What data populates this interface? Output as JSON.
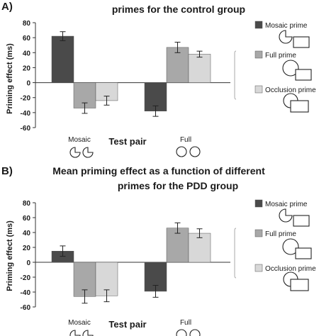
{
  "legend": [
    {
      "label": "Mosaic prime",
      "color": "#4a4a4a"
    },
    {
      "label": "Full prime",
      "color": "#a8a8a8"
    },
    {
      "label": "Occlusion prime",
      "color": "#d8d8d8"
    }
  ],
  "chart_data": [
    {
      "type": "bar",
      "panel_label": "A)",
      "title": "primes for the control group",
      "ylabel": "Priming effect (ms)",
      "xlabel": "Test pair",
      "ylim": [
        -60,
        80
      ],
      "yticks": [
        -60,
        -40,
        -20,
        0,
        20,
        40,
        60,
        80
      ],
      "categories": [
        "Mosaic",
        "Full"
      ],
      "series": [
        {
          "name": "Mosaic prime",
          "values": [
            62,
            -38
          ],
          "errors": [
            6,
            7
          ]
        },
        {
          "name": "Full prime",
          "values": [
            -34,
            47
          ],
          "errors": [
            7,
            7
          ]
        },
        {
          "name": "Occlusion prime",
          "values": [
            -24,
            38
          ],
          "errors": [
            6,
            4
          ]
        }
      ]
    },
    {
      "type": "bar",
      "panel_label": "B)",
      "title": "Mean priming effect as a function of different primes for the PDD group",
      "ylabel": "Priming effect (ms)",
      "xlabel": "Test pair",
      "ylim": [
        -60,
        80
      ],
      "yticks": [
        -60,
        -40,
        -20,
        0,
        20,
        40,
        60,
        80
      ],
      "categories": [
        "Mosaic",
        "Full"
      ],
      "series": [
        {
          "name": "Mosaic prime",
          "values": [
            15,
            -39
          ],
          "errors": [
            7,
            8
          ]
        },
        {
          "name": "Full prime",
          "values": [
            -46,
            46
          ],
          "errors": [
            9,
            7
          ]
        },
        {
          "name": "Occlusion prime",
          "values": [
            -45,
            39
          ],
          "errors": [
            8,
            6
          ]
        }
      ]
    }
  ]
}
